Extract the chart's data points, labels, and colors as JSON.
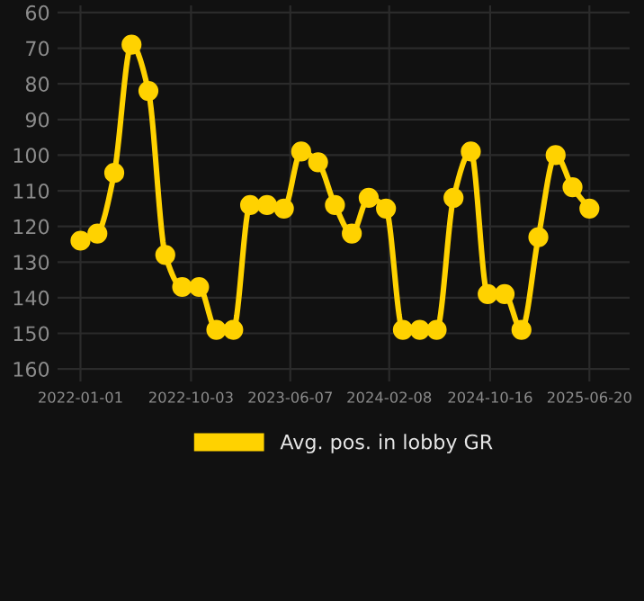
{
  "chart_data": {
    "type": "line",
    "legend": "bottom",
    "grid": true,
    "marker": "circle",
    "line_style": "solid",
    "x": [
      "2022-01-01",
      "2022-02-12",
      "2022-03-26",
      "2022-05-08",
      "2022-06-19",
      "2022-07-31",
      "2022-09-11",
      "2022-10-23",
      "2022-12-05",
      "2023-01-16",
      "2023-02-27",
      "2023-04-10",
      "2023-05-22",
      "2023-07-04",
      "2023-08-15",
      "2023-09-26",
      "2023-11-07",
      "2023-12-19",
      "2024-01-31",
      "2024-03-13",
      "2024-04-24",
      "2024-06-05",
      "2024-07-17",
      "2024-08-29",
      "2024-10-10",
      "2024-11-21",
      "2025-01-02",
      "2025-02-13",
      "2025-03-28",
      "2025-05-09",
      "2025-06-20"
    ],
    "series": [
      {
        "name": "Avg. pos. in lobby GR",
        "color": "#ffd200",
        "values": [
          124,
          122,
          105,
          69,
          82,
          128,
          137,
          137,
          149,
          149,
          114,
          114,
          115,
          99,
          102,
          114,
          122,
          112,
          115,
          149,
          149,
          149,
          112,
          99,
          139,
          139,
          149,
          123,
          100,
          109,
          115
        ]
      }
    ],
    "xlim": [
      "2021-11-05",
      "2025-09-28"
    ],
    "xticks": [
      "2022-01-01",
      "2022-10-03",
      "2023-06-07",
      "2024-02-08",
      "2024-10-16",
      "2025-06-20"
    ],
    "ylim": [
      163.5,
      58
    ],
    "yticks": [
      60,
      70,
      80,
      90,
      100,
      110,
      120,
      130,
      140,
      150,
      160
    ]
  }
}
